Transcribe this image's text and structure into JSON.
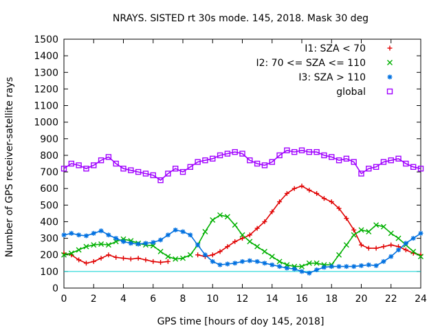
{
  "chart_data": {
    "type": "scatter",
    "title": "NRAYS. SISTED rt 30s mode. 145, 2018. Mask 30 deg",
    "xlabel": "GPS time [hours of doy 145, 2018]",
    "ylabel": "Number of GPS receiver-satellite rays",
    "xlim": [
      0,
      24
    ],
    "ylim": [
      0,
      1500
    ],
    "xticks": [
      0,
      2,
      4,
      6,
      8,
      10,
      12,
      14,
      16,
      18,
      20,
      22,
      24
    ],
    "yticks": [
      0,
      100,
      200,
      300,
      400,
      500,
      600,
      700,
      800,
      900,
      1000,
      1100,
      1200,
      1300,
      1400,
      1500
    ],
    "grid": false,
    "legend_position": "top-right",
    "reference_line": {
      "y": 100,
      "color": "#00d0d0"
    },
    "series": [
      {
        "name": "I1: SZA < 70",
        "color": "#e00000",
        "marker": "plus",
        "segments": [
          {
            "x": [
              0,
              0.5,
              1.0,
              1.5,
              2.0,
              2.5,
              3.0,
              3.5,
              4.0,
              4.5,
              5.0,
              5.5,
              6.0,
              6.5,
              7.0
            ],
            "y": [
              210,
              200,
              170,
              150,
              160,
              180,
              200,
              185,
              180,
              175,
              180,
              170,
              160,
              155,
              160
            ]
          },
          {
            "x": [
              9.0,
              9.5,
              10.0,
              10.5,
              11.0,
              11.5,
              12.0,
              12.5,
              13.0,
              13.5,
              14.0,
              14.5,
              15.0,
              15.5,
              16.0,
              16.5,
              17.0,
              17.5,
              18.0,
              18.5,
              19.0,
              19.5,
              20.0,
              20.5,
              21.0,
              21.5,
              22.0,
              22.5,
              23.0,
              23.5,
              24.0
            ],
            "y": [
              200,
              190,
              200,
              220,
              250,
              280,
              300,
              320,
              360,
              400,
              460,
              520,
              570,
              600,
              615,
              590,
              570,
              540,
              520,
              480,
              420,
              350,
              260,
              240,
              240,
              250,
              260,
              250,
              230,
              210,
              200
            ]
          }
        ]
      },
      {
        "name": "I2: 70 <= SZA <= 110",
        "color": "#00b000",
        "marker": "cross",
        "segments": [
          {
            "x": [
              0,
              0.5,
              1.0,
              1.5,
              2.0,
              2.5,
              3.0,
              3.5,
              4.0,
              4.5,
              5.0,
              5.5,
              6.0,
              6.5,
              7.0,
              7.5,
              8.0,
              8.5,
              9.0,
              9.5,
              10.0,
              10.5,
              11.0,
              11.5,
              12.0,
              12.5,
              13.0,
              13.5,
              14.0,
              14.5,
              15.0,
              15.5,
              16.0,
              16.5,
              17.0,
              17.5,
              18.0,
              18.5,
              19.0,
              19.5,
              20.0,
              20.5,
              21.0,
              21.5,
              22.0,
              22.5,
              23.0,
              23.5,
              24.0
            ],
            "y": [
              200,
              210,
              230,
              250,
              260,
              265,
              260,
              280,
              295,
              285,
              270,
              260,
              255,
              220,
              190,
              175,
              180,
              200,
              260,
              340,
              410,
              440,
              430,
              380,
              320,
              280,
              250,
              220,
              190,
              160,
              140,
              130,
              130,
              150,
              150,
              140,
              140,
              200,
              260,
              320,
              350,
              340,
              380,
              370,
              330,
              300,
              260,
              220,
              190
            ]
          }
        ]
      },
      {
        "name": "I3: SZA > 110",
        "color": "#0070e0",
        "marker": "star",
        "segments": [
          {
            "x": [
              0,
              0.5,
              1.0,
              1.5,
              2.0,
              2.5,
              3.0,
              3.5,
              4.0,
              4.5,
              5.0,
              5.5,
              6.0,
              6.5,
              7.0,
              7.5,
              8.0,
              8.5,
              9.0,
              9.5,
              10.0,
              10.5,
              11.0,
              11.5,
              12.0,
              12.5,
              13.0,
              13.5,
              14.0,
              14.5,
              15.0,
              15.5,
              16.0,
              16.5,
              17.0,
              17.5,
              18.0,
              18.5,
              19.0,
              19.5,
              20.0,
              20.5,
              21.0,
              21.5,
              22.0,
              22.5,
              23.0,
              23.5,
              24.0
            ],
            "y": [
              320,
              330,
              320,
              315,
              330,
              345,
              320,
              300,
              280,
              270,
              265,
              270,
              275,
              290,
              320,
              350,
              340,
              320,
              260,
              200,
              160,
              140,
              145,
              150,
              160,
              165,
              160,
              150,
              140,
              130,
              120,
              115,
              100,
              90,
              110,
              125,
              130,
              130,
              130,
              130,
              135,
              140,
              135,
              160,
              190,
              230,
              270,
              300,
              330
            ]
          }
        ]
      },
      {
        "name": "global",
        "color": "#a000ff",
        "marker": "square",
        "segments": [
          {
            "x": [
              0,
              0.5,
              1.0,
              1.5,
              2.0,
              2.5,
              3.0,
              3.5,
              4.0,
              4.5,
              5.0,
              5.5,
              6.0,
              6.5,
              7.0,
              7.5,
              8.0,
              8.5,
              9.0,
              9.5,
              10.0,
              10.5,
              11.0,
              11.5,
              12.0,
              12.5,
              13.0,
              13.5,
              14.0,
              14.5,
              15.0,
              15.5,
              16.0,
              16.5,
              17.0,
              17.5,
              18.0,
              18.5,
              19.0,
              19.5,
              20.0,
              20.5,
              21.0,
              21.5,
              22.0,
              22.5,
              23.0,
              23.5,
              24.0
            ],
            "y": [
              720,
              750,
              740,
              720,
              740,
              770,
              790,
              750,
              720,
              710,
              700,
              690,
              680,
              650,
              690,
              720,
              700,
              730,
              760,
              770,
              780,
              800,
              810,
              820,
              810,
              770,
              750,
              740,
              760,
              800,
              830,
              820,
              830,
              820,
              820,
              800,
              790,
              770,
              780,
              760,
              690,
              720,
              730,
              760,
              770,
              780,
              750,
              730,
              720
            ]
          }
        ]
      }
    ]
  }
}
